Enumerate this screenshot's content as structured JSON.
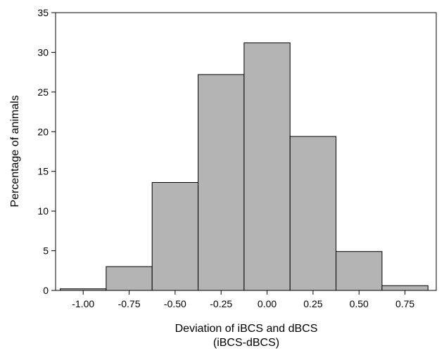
{
  "chart_data": {
    "type": "bar",
    "title": "",
    "xlabel_line1": "Deviation of iBCS and dBCS",
    "xlabel_line2": "(iBCS-dBCS)",
    "ylabel": "Percentage of animals",
    "bin_width": 0.25,
    "bin_centers": [
      -1.0,
      -0.75,
      -0.5,
      -0.25,
      0.0,
      0.25,
      0.5,
      0.75
    ],
    "values": [
      0.2,
      3.0,
      13.6,
      27.2,
      31.2,
      19.4,
      4.9,
      0.6
    ],
    "xlim": [
      -1.15,
      0.92
    ],
    "ylim": [
      0,
      35
    ],
    "x_ticks": [
      -1.0,
      -0.75,
      -0.5,
      -0.25,
      0.0,
      0.25,
      0.5,
      0.75
    ],
    "x_tick_labels": [
      "-1.00",
      "-0.75",
      "-0.50",
      "-0.25",
      "0.00",
      "0.25",
      "0.50",
      "0.75"
    ],
    "y_ticks": [
      0,
      5,
      10,
      15,
      20,
      25,
      30,
      35
    ],
    "y_tick_labels": [
      "0",
      "5",
      "10",
      "15",
      "20",
      "25",
      "30",
      "35"
    ],
    "grid": false,
    "bar_color": "#b4b4b4",
    "edge_color": "#000000"
  }
}
